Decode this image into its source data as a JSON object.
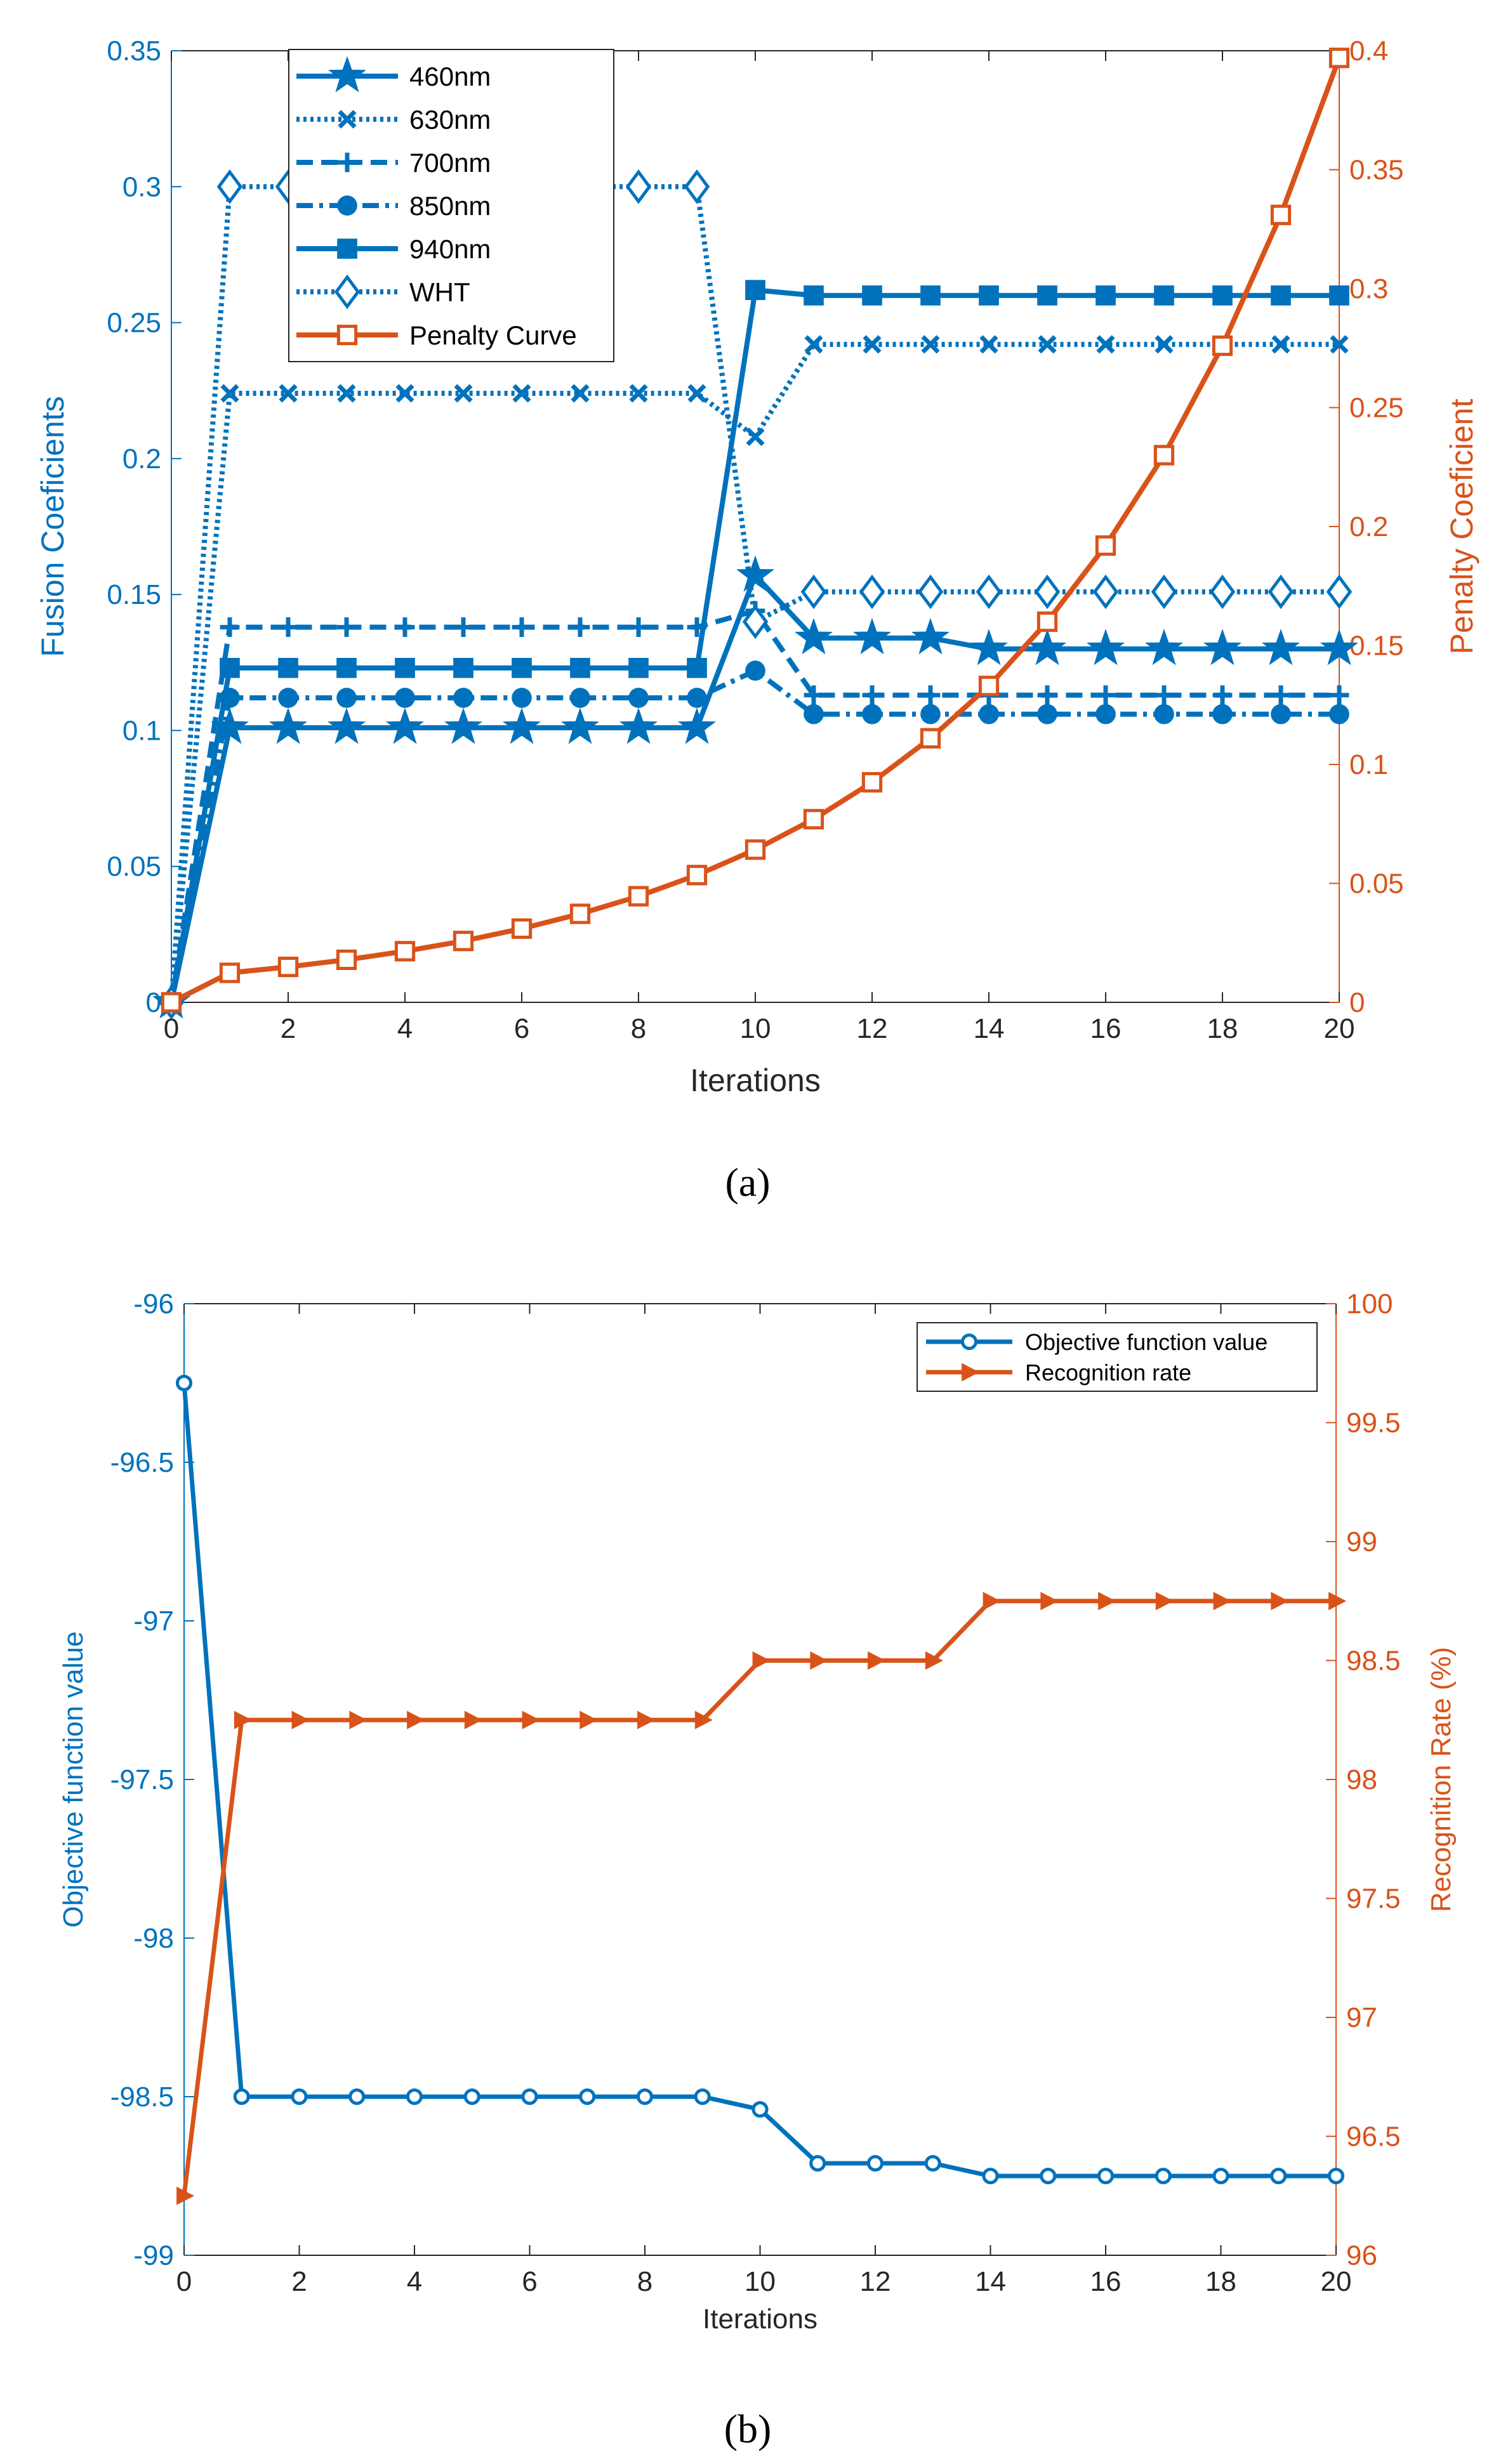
{
  "colors": {
    "blue": "#0072BD",
    "orange": "#D95319"
  },
  "captions": [
    "(a)",
    "(b)"
  ],
  "chart_data": [
    {
      "type": "line",
      "xlabel": "Iterations",
      "ylabel_left": "Fusion Coeficients",
      "ylabel_right": "Penalty Coeficient",
      "xlim": [
        0,
        20
      ],
      "ylim_left": [
        0,
        0.35
      ],
      "ylim_right": [
        0,
        0.4
      ],
      "xticks": [
        "0",
        "2",
        "4",
        "6",
        "8",
        "10",
        "12",
        "14",
        "16",
        "18",
        "20"
      ],
      "yticks_left": [
        "0",
        "0.05",
        "0.1",
        "0.15",
        "0.2",
        "0.25",
        "0.3",
        "0.35"
      ],
      "yticks_right": [
        "0",
        "0.05",
        "0.1",
        "0.15",
        "0.2",
        "0.25",
        "0.3",
        "0.35",
        "0.4"
      ],
      "legend_position": "top-left",
      "x": [
        0,
        1,
        2,
        3,
        4,
        5,
        6,
        7,
        8,
        9,
        10,
        11,
        12,
        13,
        14,
        15,
        16,
        17,
        18,
        19,
        20
      ],
      "series": [
        {
          "name": "460nm",
          "axis": "left",
          "color": "blue",
          "line": "solid",
          "marker": "star",
          "values": [
            0,
            0.101,
            0.101,
            0.101,
            0.101,
            0.101,
            0.101,
            0.101,
            0.101,
            0.101,
            0.157,
            0.134,
            0.134,
            0.134,
            0.13,
            0.13,
            0.13,
            0.13,
            0.13,
            0.13,
            0.13
          ]
        },
        {
          "name": "630nm",
          "axis": "left",
          "color": "blue",
          "line": "dotted",
          "marker": "x",
          "values": [
            0,
            0.224,
            0.224,
            0.224,
            0.224,
            0.224,
            0.224,
            0.224,
            0.224,
            0.224,
            0.208,
            0.242,
            0.242,
            0.242,
            0.242,
            0.242,
            0.242,
            0.242,
            0.242,
            0.242,
            0.242
          ]
        },
        {
          "name": "700nm",
          "axis": "left",
          "color": "blue",
          "line": "dashed",
          "marker": "plus",
          "values": [
            0,
            0.138,
            0.138,
            0.138,
            0.138,
            0.138,
            0.138,
            0.138,
            0.138,
            0.138,
            0.144,
            0.113,
            0.113,
            0.113,
            0.113,
            0.113,
            0.113,
            0.113,
            0.113,
            0.113,
            0.113
          ]
        },
        {
          "name": "850nm",
          "axis": "left",
          "color": "blue",
          "line": "dashdot",
          "marker": "circle",
          "values": [
            0,
            0.112,
            0.112,
            0.112,
            0.112,
            0.112,
            0.112,
            0.112,
            0.112,
            0.112,
            0.122,
            0.106,
            0.106,
            0.106,
            0.106,
            0.106,
            0.106,
            0.106,
            0.106,
            0.106,
            0.106
          ]
        },
        {
          "name": "940nm",
          "axis": "left",
          "color": "blue",
          "line": "solid",
          "marker": "square",
          "values": [
            0,
            0.123,
            0.123,
            0.123,
            0.123,
            0.123,
            0.123,
            0.123,
            0.123,
            0.123,
            0.262,
            0.26,
            0.26,
            0.26,
            0.26,
            0.26,
            0.26,
            0.26,
            0.26,
            0.26,
            0.26
          ]
        },
        {
          "name": "WHT",
          "axis": "left",
          "color": "blue",
          "line": "dotted",
          "marker": "diamond",
          "values": [
            0,
            0.3,
            0.3,
            0.3,
            0.3,
            0.3,
            0.3,
            0.3,
            0.3,
            0.3,
            0.14,
            0.151,
            0.151,
            0.151,
            0.151,
            0.151,
            0.151,
            0.151,
            0.151,
            0.151,
            0.151
          ]
        },
        {
          "name": "Penalty Curve",
          "axis": "right",
          "color": "orange",
          "line": "solid",
          "marker": "square-open",
          "values": [
            0,
            0.0124,
            0.0149,
            0.0179,
            0.0215,
            0.0258,
            0.031,
            0.0372,
            0.0446,
            0.0535,
            0.0642,
            0.077,
            0.0925,
            0.111,
            0.133,
            0.16,
            0.192,
            0.23,
            0.276,
            0.331,
            0.397
          ]
        }
      ]
    },
    {
      "type": "line",
      "xlabel": "Iterations",
      "ylabel_left": "Objective function value",
      "ylabel_right": "Recognition Rate (%)",
      "xlim": [
        0,
        20
      ],
      "ylim_left": [
        -99,
        -96
      ],
      "ylim_right": [
        96,
        100
      ],
      "xticks": [
        "0",
        "2",
        "4",
        "6",
        "8",
        "10",
        "12",
        "14",
        "16",
        "18",
        "20"
      ],
      "yticks_left": [
        "-99",
        "-98.5",
        "-98",
        "-97.5",
        "-97",
        "-96.5",
        "-96"
      ],
      "yticks_right": [
        "96",
        "96.5",
        "97",
        "97.5",
        "98",
        "98.5",
        "99",
        "99.5",
        "100"
      ],
      "legend_position": "top-right",
      "x": [
        0,
        1,
        2,
        3,
        4,
        5,
        6,
        7,
        8,
        9,
        10,
        11,
        12,
        13,
        14,
        15,
        16,
        17,
        18,
        19,
        20
      ],
      "series": [
        {
          "name": "Objective function value",
          "axis": "left",
          "color": "blue",
          "line": "solid",
          "marker": "circle-open",
          "values": [
            -96.25,
            -98.5,
            -98.5,
            -98.5,
            -98.5,
            -98.5,
            -98.5,
            -98.5,
            -98.5,
            -98.5,
            -98.54,
            -98.71,
            -98.71,
            -98.71,
            -98.75,
            -98.75,
            -98.75,
            -98.75,
            -98.75,
            -98.75,
            -98.75
          ]
        },
        {
          "name": "Recognition rate",
          "axis": "right",
          "color": "orange",
          "line": "solid",
          "marker": "triangle-right",
          "values": [
            96.25,
            98.25,
            98.25,
            98.25,
            98.25,
            98.25,
            98.25,
            98.25,
            98.25,
            98.25,
            98.5,
            98.5,
            98.5,
            98.5,
            98.75,
            98.75,
            98.75,
            98.75,
            98.75,
            98.75,
            98.75
          ]
        }
      ]
    }
  ]
}
